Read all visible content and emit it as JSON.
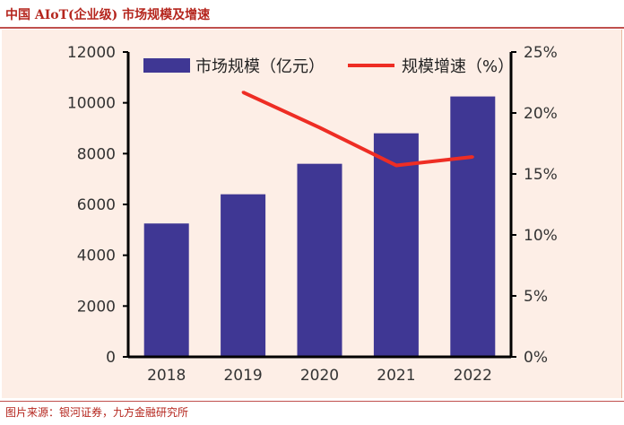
{
  "header": {
    "title": "中国 AIoT(企业级) 市场规模及增速"
  },
  "footer": {
    "source": "图片来源：银河证券，九方金融研究所"
  },
  "colors": {
    "title": "#b5261e",
    "bar": "#3f3794",
    "line": "#ee2d24",
    "panel": "#fdeee6",
    "axis": "#000000"
  },
  "chart_data": {
    "type": "bar",
    "title": "中国 AIoT(企业级) 市场规模及增速",
    "categories": [
      "2018",
      "2019",
      "2020",
      "2021",
      "2022"
    ],
    "series": [
      {
        "name": "市场规模（亿元）",
        "type": "bar",
        "axis": "left",
        "values": [
          5250,
          6400,
          7600,
          8800,
          10250
        ]
      },
      {
        "name": "规模增速（%）",
        "type": "line",
        "axis": "right",
        "values": [
          null,
          21.7,
          18.8,
          15.7,
          16.4
        ]
      }
    ],
    "y_left": {
      "lim": [
        0,
        12000
      ],
      "ticks": [
        "0",
        "2000",
        "4000",
        "6000",
        "8000",
        "10000",
        "12000"
      ]
    },
    "y_right": {
      "lim": [
        0,
        25
      ],
      "ticks": [
        "0%",
        "5%",
        "10%",
        "15%",
        "20%",
        "25%"
      ]
    },
    "legend": {
      "placement": "top",
      "items": [
        "市场规模（亿元）",
        "规模增速（%）"
      ]
    },
    "grid": false,
    "xlabel": "",
    "ylabel": ""
  }
}
